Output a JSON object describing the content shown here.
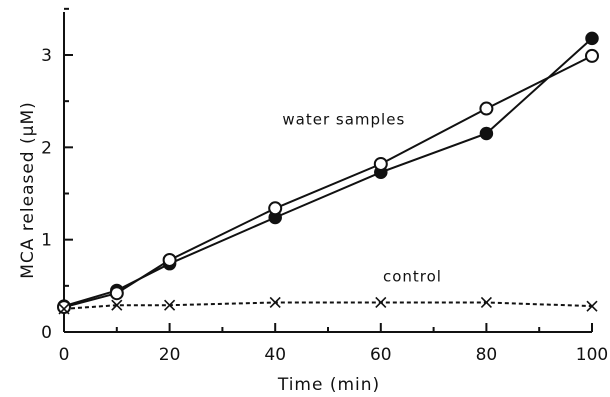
{
  "chart_data": {
    "type": "line",
    "title": "",
    "xlabel": "Time (min)",
    "ylabel": "MCA released (µM)",
    "xlim": [
      0,
      100
    ],
    "ylim": [
      0,
      3.5
    ],
    "xticks": [
      0,
      20,
      40,
      60,
      80,
      100
    ],
    "yticks": [
      0,
      1,
      2,
      3
    ],
    "grid": false,
    "series": [
      {
        "marker": "filled-circle",
        "line": "solid",
        "x": [
          0,
          10,
          20,
          40,
          60,
          80,
          100
        ],
        "y": [
          0.28,
          0.45,
          0.74,
          1.24,
          1.73,
          2.15,
          3.18
        ]
      },
      {
        "marker": "open-circle",
        "line": "solid",
        "x": [
          0,
          10,
          20,
          40,
          60,
          80,
          100
        ],
        "y": [
          0.27,
          0.42,
          0.78,
          1.34,
          1.82,
          2.42,
          2.99
        ]
      },
      {
        "marker": "x",
        "line": "dashed",
        "x": [
          0,
          10,
          20,
          40,
          60,
          80,
          100
        ],
        "y": [
          0.25,
          0.29,
          0.29,
          0.32,
          0.32,
          0.32,
          0.28
        ]
      }
    ],
    "annotations": [
      {
        "text": "water samples",
        "x": 53,
        "y": 2.3
      },
      {
        "text": "control",
        "x": 66,
        "y": 0.6
      }
    ]
  }
}
